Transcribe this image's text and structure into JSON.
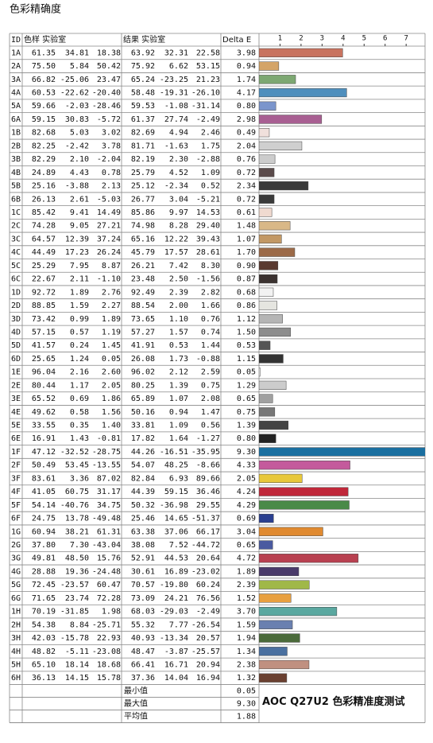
{
  "chart_data": {
    "type": "bar",
    "title": "色彩精确度",
    "caption": "AOC Q27U2 色彩精准度测试",
    "headers": [
      "ID",
      "色样 实验室",
      "结果 实验室",
      "Delta E"
    ],
    "xlim": [
      0,
      7.9
    ],
    "xticks": [
      1,
      2,
      3,
      4,
      5,
      6,
      7
    ],
    "categories": [
      "1A",
      "2A",
      "3A",
      "4A",
      "5A",
      "6A",
      "1B",
      "2B",
      "3B",
      "4B",
      "5B",
      "6B",
      "1C",
      "2C",
      "3C",
      "4C",
      "5C",
      "6C",
      "1D",
      "2D",
      "3D",
      "4D",
      "5D",
      "6D",
      "1E",
      "2E",
      "3E",
      "4E",
      "5E",
      "6E",
      "1F",
      "2F",
      "3F",
      "4F",
      "5F",
      "6F",
      "1G",
      "2G",
      "3G",
      "4G",
      "5G",
      "6G",
      "1H",
      "2H",
      "3H",
      "4H",
      "5H",
      "6H"
    ],
    "sample": [
      [
        "61.35",
        "34.81",
        "18.38"
      ],
      [
        "75.50",
        "5.84",
        "50.42"
      ],
      [
        "66.82",
        "-25.06",
        "23.47"
      ],
      [
        "60.53",
        "-22.62",
        "-20.40"
      ],
      [
        "59.66",
        "-2.03",
        "-28.46"
      ],
      [
        "59.15",
        "30.83",
        "-5.72"
      ],
      [
        "82.68",
        "5.03",
        "3.02"
      ],
      [
        "82.25",
        "-2.42",
        "3.78"
      ],
      [
        "82.29",
        "2.10",
        "-2.04"
      ],
      [
        "24.89",
        "4.43",
        "0.78"
      ],
      [
        "25.16",
        "-3.88",
        "2.13"
      ],
      [
        "26.13",
        "2.61",
        "-5.03"
      ],
      [
        "85.42",
        "9.41",
        "14.49"
      ],
      [
        "74.28",
        "9.05",
        "27.21"
      ],
      [
        "64.57",
        "12.39",
        "37.24"
      ],
      [
        "44.49",
        "17.23",
        "26.24"
      ],
      [
        "25.29",
        "7.95",
        "8.87"
      ],
      [
        "22.67",
        "2.11",
        "-1.10"
      ],
      [
        "92.72",
        "1.89",
        "2.76"
      ],
      [
        "88.85",
        "1.59",
        "2.27"
      ],
      [
        "73.42",
        "0.99",
        "1.89"
      ],
      [
        "57.15",
        "0.57",
        "1.19"
      ],
      [
        "41.57",
        "0.24",
        "1.45"
      ],
      [
        "25.65",
        "1.24",
        "0.05"
      ],
      [
        "96.04",
        "2.16",
        "2.60"
      ],
      [
        "80.44",
        "1.17",
        "2.05"
      ],
      [
        "65.52",
        "0.69",
        "1.86"
      ],
      [
        "49.62",
        "0.58",
        "1.56"
      ],
      [
        "33.55",
        "0.35",
        "1.40"
      ],
      [
        "16.91",
        "1.43",
        "-0.81"
      ],
      [
        "47.12",
        "-32.52",
        "-28.75"
      ],
      [
        "50.49",
        "53.45",
        "-13.55"
      ],
      [
        "83.61",
        "3.36",
        "87.02"
      ],
      [
        "41.05",
        "60.75",
        "31.17"
      ],
      [
        "54.14",
        "-40.76",
        "34.75"
      ],
      [
        "24.75",
        "13.78",
        "-49.48"
      ],
      [
        "60.94",
        "38.21",
        "61.31"
      ],
      [
        "37.80",
        "7.30",
        "-43.04"
      ],
      [
        "49.81",
        "48.50",
        "15.76"
      ],
      [
        "28.88",
        "19.36",
        "-24.48"
      ],
      [
        "72.45",
        "-23.57",
        "60.47"
      ],
      [
        "71.65",
        "23.74",
        "72.28"
      ],
      [
        "70.19",
        "-31.85",
        "1.98"
      ],
      [
        "54.38",
        "8.84",
        "-25.71"
      ],
      [
        "42.03",
        "-15.78",
        "22.93"
      ],
      [
        "48.82",
        "-5.11",
        "-23.08"
      ],
      [
        "65.10",
        "18.14",
        "18.68"
      ],
      [
        "36.13",
        "14.15",
        "15.78"
      ]
    ],
    "result": [
      [
        "63.92",
        "32.31",
        "22.58"
      ],
      [
        "75.92",
        "6.62",
        "53.15"
      ],
      [
        "65.24",
        "-23.25",
        "21.23"
      ],
      [
        "58.48",
        "-19.31",
        "-26.10"
      ],
      [
        "59.53",
        "-1.08",
        "-31.14"
      ],
      [
        "61.37",
        "27.74",
        "-2.49"
      ],
      [
        "82.69",
        "4.94",
        "2.46"
      ],
      [
        "81.71",
        "-1.63",
        "1.75"
      ],
      [
        "82.19",
        "2.30",
        "-2.88"
      ],
      [
        "25.79",
        "4.52",
        "1.09"
      ],
      [
        "25.12",
        "-2.34",
        "0.52"
      ],
      [
        "26.77",
        "3.04",
        "-5.21"
      ],
      [
        "85.86",
        "9.97",
        "14.53"
      ],
      [
        "74.98",
        "8.28",
        "29.40"
      ],
      [
        "65.16",
        "12.22",
        "39.43"
      ],
      [
        "45.79",
        "17.57",
        "28.61"
      ],
      [
        "26.21",
        "7.42",
        "8.30"
      ],
      [
        "23.48",
        "2.50",
        "-1.56"
      ],
      [
        "92.49",
        "2.39",
        "2.82"
      ],
      [
        "88.54",
        "2.00",
        "1.66"
      ],
      [
        "73.65",
        "1.10",
        "0.76"
      ],
      [
        "57.27",
        "1.57",
        "0.74"
      ],
      [
        "41.91",
        "0.53",
        "1.44"
      ],
      [
        "26.08",
        "1.73",
        "-0.88"
      ],
      [
        "96.02",
        "2.12",
        "2.59"
      ],
      [
        "80.25",
        "1.39",
        "0.75"
      ],
      [
        "65.89",
        "1.07",
        "2.08"
      ],
      [
        "50.16",
        "0.94",
        "1.47"
      ],
      [
        "33.81",
        "1.09",
        "0.56"
      ],
      [
        "17.82",
        "1.64",
        "-1.27"
      ],
      [
        "44.26",
        "-16.51",
        "-35.95"
      ],
      [
        "54.07",
        "48.25",
        "-8.66"
      ],
      [
        "82.84",
        "6.93",
        "89.66"
      ],
      [
        "44.39",
        "59.15",
        "36.46"
      ],
      [
        "50.32",
        "-36.98",
        "29.55"
      ],
      [
        "25.46",
        "14.65",
        "-51.37"
      ],
      [
        "63.38",
        "37.06",
        "66.17"
      ],
      [
        "38.08",
        "7.52",
        "-44.72"
      ],
      [
        "52.91",
        "44.53",
        "20.64"
      ],
      [
        "30.61",
        "16.89",
        "-23.02"
      ],
      [
        "70.57",
        "-19.80",
        "60.24"
      ],
      [
        "73.09",
        "24.21",
        "76.56"
      ],
      [
        "68.03",
        "-29.03",
        "-2.49"
      ],
      [
        "55.32",
        "7.77",
        "-26.54"
      ],
      [
        "40.93",
        "-13.34",
        "20.57"
      ],
      [
        "48.47",
        "-3.87",
        "-25.57"
      ],
      [
        "66.41",
        "16.71",
        "20.94"
      ],
      [
        "37.36",
        "14.04",
        "16.94"
      ]
    ],
    "values": [
      3.98,
      0.94,
      1.74,
      4.17,
      0.8,
      2.98,
      0.49,
      2.04,
      0.76,
      0.72,
      2.34,
      0.72,
      0.61,
      1.48,
      1.07,
      1.7,
      0.9,
      0.87,
      0.68,
      0.86,
      1.12,
      1.5,
      0.53,
      1.15,
      0.05,
      1.29,
      0.65,
      0.75,
      1.39,
      0.8,
      9.3,
      4.33,
      2.05,
      4.24,
      4.29,
      0.69,
      3.04,
      0.65,
      4.72,
      1.89,
      2.39,
      1.52,
      3.7,
      1.59,
      1.94,
      1.34,
      2.38,
      1.32
    ],
    "value_labels": [
      "3.98",
      "0.94",
      "1.74",
      "4.17",
      "0.80",
      "2.98",
      "0.49",
      "2.04",
      "0.76",
      "0.72",
      "2.34",
      "0.72",
      "0.61",
      "1.48",
      "1.07",
      "1.70",
      "0.90",
      "0.87",
      "0.68",
      "0.86",
      "1.12",
      "1.50",
      "0.53",
      "1.15",
      "0.05",
      "1.29",
      "0.65",
      "0.75",
      "1.39",
      "0.80",
      "9.30",
      "4.33",
      "2.05",
      "4.24",
      "4.29",
      "0.69",
      "3.04",
      "0.65",
      "4.72",
      "1.89",
      "2.39",
      "1.52",
      "3.70",
      "1.59",
      "1.94",
      "1.34",
      "2.38",
      "1.32"
    ],
    "colors": [
      "#c8735f",
      "#d4a467",
      "#7da872",
      "#4f8fbd",
      "#7b95cc",
      "#a85f92",
      "#f0e0dc",
      "#cfcfcf",
      "#cccccc",
      "#5b4b4b",
      "#3a3a3a",
      "#3a3a3a",
      "#f0dad0",
      "#d9b887",
      "#c29865",
      "#9c6a48",
      "#5a3a30",
      "#3b3230",
      "#f2f2f2",
      "#e5e5e0",
      "#b5b5b5",
      "#8d8d8d",
      "#555555",
      "#333333",
      "#fafafa",
      "#cccccc",
      "#a0a0a0",
      "#777777",
      "#444444",
      "#222222",
      "#1a6fa0",
      "#c45a9c",
      "#e8c83a",
      "#c0283a",
      "#4a8a48",
      "#2a3f90",
      "#e08a30",
      "#4a5aa0",
      "#b84050",
      "#4a3a6a",
      "#a0b848",
      "#e8a040",
      "#5aa8a0",
      "#6a80b0",
      "#4a6a3a",
      "#4a70a0",
      "#c09080",
      "#6a4030"
    ],
    "summary": [
      {
        "label": "最小值",
        "value": "0.05"
      },
      {
        "label": "最大值",
        "value": "9.30"
      },
      {
        "label": "平均值",
        "value": "1.88"
      }
    ]
  }
}
